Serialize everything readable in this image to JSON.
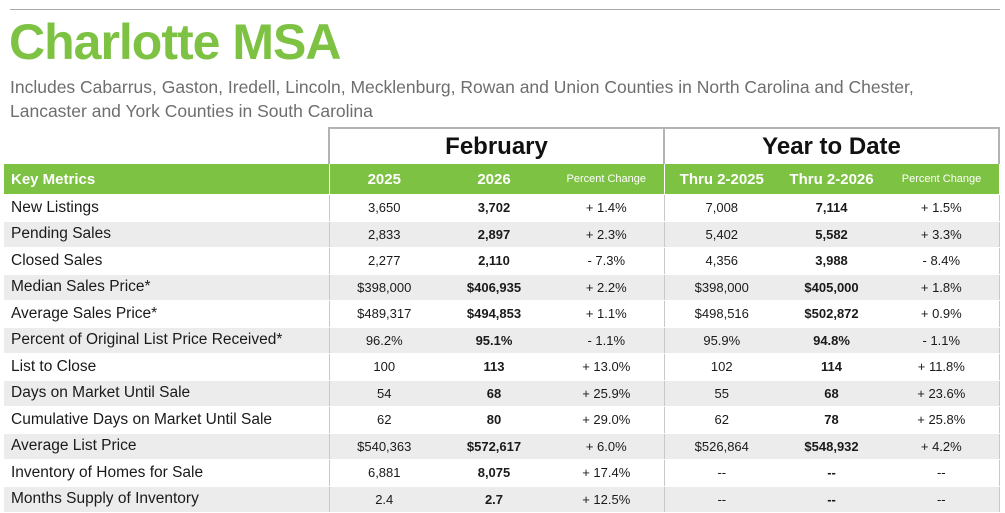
{
  "title": "Charlotte MSA",
  "subtitle": "Includes Cabarrus, Gaston, Iredell, Lincoln, Mecklenburg, Rowan and Union Counties in North Carolina and Chester, Lancaster and York Counties in South Carolina",
  "groups": {
    "month": "February",
    "ytd": "Year to Date"
  },
  "columns": {
    "key": "Key Metrics",
    "y1": "2025",
    "y2": "2026",
    "pct1": "Percent Change",
    "ytd1": "Thru 2-2025",
    "ytd2": "Thru 2-2026",
    "pct2": "Percent Change"
  },
  "rows": [
    {
      "metric": "New Listings",
      "y1": "3,650",
      "y2": "3,702",
      "pct1": "+ 1.4%",
      "ytd1": "7,008",
      "ytd2": "7,114",
      "pct2": "+ 1.5%"
    },
    {
      "metric": "Pending Sales",
      "y1": "2,833",
      "y2": "2,897",
      "pct1": "+ 2.3%",
      "ytd1": "5,402",
      "ytd2": "5,582",
      "pct2": "+ 3.3%"
    },
    {
      "metric": "Closed Sales",
      "y1": "2,277",
      "y2": "2,110",
      "pct1": "- 7.3%",
      "ytd1": "4,356",
      "ytd2": "3,988",
      "pct2": "- 8.4%"
    },
    {
      "metric": "Median Sales Price*",
      "y1": "$398,000",
      "y2": "$406,935",
      "pct1": "+ 2.2%",
      "ytd1": "$398,000",
      "ytd2": "$405,000",
      "pct2": "+ 1.8%"
    },
    {
      "metric": "Average Sales Price*",
      "y1": "$489,317",
      "y2": "$494,853",
      "pct1": "+ 1.1%",
      "ytd1": "$498,516",
      "ytd2": "$502,872",
      "pct2": "+ 0.9%"
    },
    {
      "metric": "Percent of Original List Price Received*",
      "y1": "96.2%",
      "y2": "95.1%",
      "pct1": "- 1.1%",
      "ytd1": "95.9%",
      "ytd2": "94.8%",
      "pct2": "- 1.1%"
    },
    {
      "metric": "List to Close",
      "y1": "100",
      "y2": "113",
      "pct1": "+ 13.0%",
      "ytd1": "102",
      "ytd2": "114",
      "pct2": "+ 11.8%"
    },
    {
      "metric": "Days on Market Until Sale",
      "y1": "54",
      "y2": "68",
      "pct1": "+ 25.9%",
      "ytd1": "55",
      "ytd2": "68",
      "pct2": "+ 23.6%"
    },
    {
      "metric": "Cumulative Days on Market Until Sale",
      "y1": "62",
      "y2": "80",
      "pct1": "+ 29.0%",
      "ytd1": "62",
      "ytd2": "78",
      "pct2": "+ 25.8%"
    },
    {
      "metric": "Average List Price",
      "y1": "$540,363",
      "y2": "$572,617",
      "pct1": "+ 6.0%",
      "ytd1": "$526,864",
      "ytd2": "$548,932",
      "pct2": "+ 4.2%"
    },
    {
      "metric": "Inventory of Homes for Sale",
      "y1": "6,881",
      "y2": "8,075",
      "pct1": "+ 17.4%",
      "ytd1": "--",
      "ytd2": "--",
      "pct2": "--"
    },
    {
      "metric": "Months Supply of Inventory",
      "y1": "2.4",
      "y2": "2.7",
      "pct1": "+ 12.5%",
      "ytd1": "--",
      "ytd2": "--",
      "pct2": "--"
    }
  ],
  "colors": {
    "accent": "#7dc242",
    "row_shade": "#ececec",
    "subtitle": "#6e6e6e"
  }
}
